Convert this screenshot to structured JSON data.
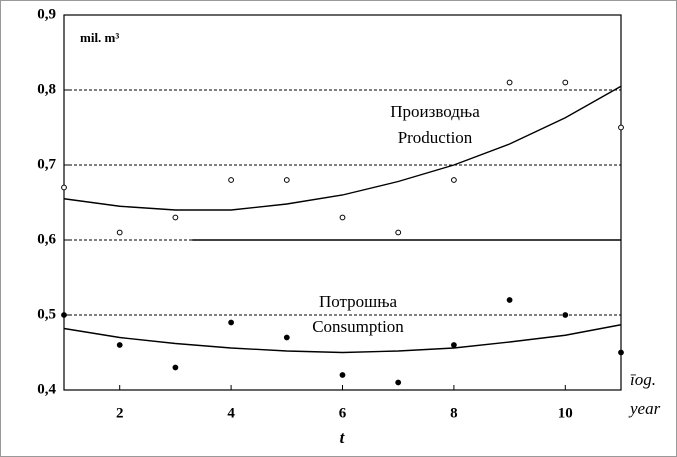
{
  "chart_data": {
    "type": "scatter",
    "y_unit": "mil. m³",
    "xlabel": "t",
    "x_annotation": "īog.",
    "x_annotation_en": "year",
    "x": [
      1,
      2,
      3,
      4,
      5,
      6,
      7,
      8,
      9,
      10,
      11
    ],
    "series": [
      {
        "name": "Производња",
        "name_en": "Production",
        "color": "#000000",
        "marker": "open",
        "values": [
          0.67,
          0.61,
          0.63,
          0.68,
          0.68,
          0.63,
          0.61,
          0.68,
          0.81,
          0.81,
          0.75
        ],
        "trend": [
          0.655,
          0.645,
          0.64,
          0.64,
          0.648,
          0.66,
          0.678,
          0.7,
          0.728,
          0.763,
          0.805
        ]
      },
      {
        "name": "Потрошња",
        "name_en": "Consumption",
        "color": "#000000",
        "marker": "filled",
        "values": [
          0.5,
          0.46,
          0.43,
          0.49,
          0.47,
          0.42,
          0.41,
          0.46,
          0.52,
          0.5,
          0.45
        ],
        "trend": [
          0.482,
          0.47,
          0.462,
          0.456,
          0.452,
          0.45,
          0.452,
          0.456,
          0.464,
          0.473,
          0.487
        ]
      }
    ],
    "reference_line": {
      "y": 0.6,
      "x_start": 3.3,
      "x_end": 11
    },
    "xlim": [
      1,
      11
    ],
    "ylim": [
      0.4,
      0.9
    ],
    "xticks": [
      2,
      4,
      6,
      8,
      10
    ],
    "yticks": [
      {
        "value": 0.4,
        "label": "0,4"
      },
      {
        "value": 0.5,
        "label": "0,5"
      },
      {
        "value": 0.6,
        "label": "0,6"
      },
      {
        "value": 0.7,
        "label": "0,7"
      },
      {
        "value": 0.8,
        "label": "0,8"
      },
      {
        "value": 0.9,
        "label": "0,9"
      }
    ],
    "grid": true
  }
}
